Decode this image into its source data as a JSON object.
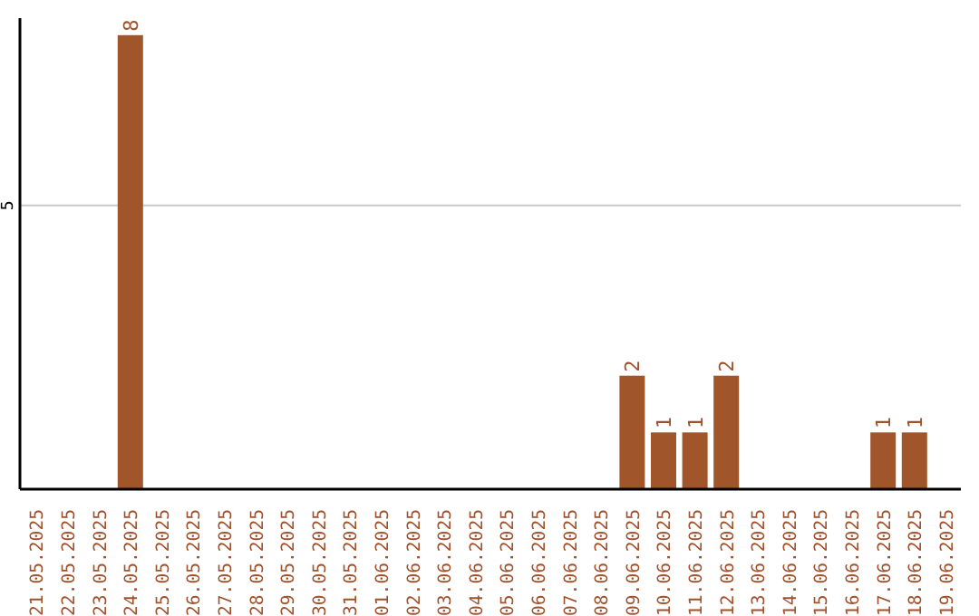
{
  "chart_data": {
    "type": "bar",
    "categories": [
      "21.05.2025",
      "22.05.2025",
      "23.05.2025",
      "24.05.2025",
      "25.05.2025",
      "26.05.2025",
      "27.05.2025",
      "28.05.2025",
      "29.05.2025",
      "30.05.2025",
      "31.05.2025",
      "01.06.2025",
      "02.06.2025",
      "03.06.2025",
      "04.06.2025",
      "05.06.2025",
      "06.06.2025",
      "07.06.2025",
      "08.06.2025",
      "09.06.2025",
      "10.06.2025",
      "11.06.2025",
      "12.06.2025",
      "13.06.2025",
      "14.06.2025",
      "15.06.2025",
      "16.06.2025",
      "17.06.2025",
      "18.06.2025",
      "19.06.2025"
    ],
    "values": [
      0,
      0,
      0,
      8,
      0,
      0,
      0,
      0,
      0,
      0,
      0,
      0,
      0,
      0,
      0,
      0,
      0,
      0,
      0,
      2,
      1,
      1,
      2,
      0,
      0,
      0,
      0,
      1,
      1,
      0
    ],
    "value_labels": [
      null,
      null,
      null,
      "8",
      null,
      null,
      null,
      null,
      null,
      null,
      null,
      null,
      null,
      null,
      null,
      null,
      null,
      null,
      null,
      "2",
      "1",
      "1",
      "2",
      null,
      null,
      null,
      null,
      "1",
      "1",
      null
    ],
    "color": "#a0562a",
    "ylim": [
      0,
      8.3
    ],
    "yticks": [
      5
    ],
    "grid": "y"
  }
}
